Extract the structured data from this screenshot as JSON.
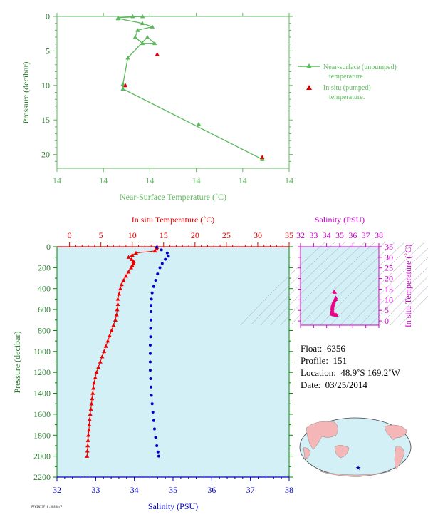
{
  "chart_data": [
    {
      "id": "near-surface",
      "type": "line",
      "xlabel": "Near-Surface Temperature (˚C)",
      "ylabel": "Pressure (decibar)",
      "x_tick_labels": [
        "14",
        "14",
        "14",
        "14",
        "14",
        "14"
      ],
      "y_ticks": [
        0,
        5,
        10,
        15,
        20
      ],
      "xlim": [
        13.35,
        14.3
      ],
      "ylim": [
        0,
        22
      ],
      "y_inverted": true,
      "series": [
        {
          "name": "Near-surface (unpumped) temperature.",
          "color": "#5cb85c",
          "marker": "triangle",
          "x": [
            13.6,
            13.66,
            13.7,
            13.6,
            13.7,
            13.74,
            13.68,
            13.67,
            13.7,
            13.75,
            13.72,
            13.64,
            13.62,
            13.62,
            14.19,
            14.19,
            13.93
          ],
          "y": [
            0.2,
            0.0,
            0.0,
            0.3,
            1.0,
            1.5,
            2.0,
            3.0,
            3.9,
            3.9,
            3.0,
            6.0,
            9.8,
            10.5,
            20.7,
            20.5,
            15.6
          ]
        },
        {
          "name": "In situ (pumped) temperature.",
          "color": "#dd0000",
          "marker": "triangle",
          "x": [
            13.76,
            13.63,
            14.19
          ],
          "y": [
            5.5,
            10.0,
            20.4
          ]
        }
      ]
    },
    {
      "id": "profile",
      "type": "scatter",
      "top_axis_label": "In situ Temperature (˚C)",
      "bottom_axis_label": "Salinity (PSU)",
      "ylabel": "Pressure (decibar)",
      "temp_ticks": [
        0,
        5,
        10,
        15,
        20,
        25,
        30,
        35
      ],
      "sal_ticks": [
        32,
        33,
        34,
        35,
        36,
        37,
        38
      ],
      "y_ticks": [
        0,
        200,
        400,
        600,
        800,
        1000,
        1200,
        1400,
        1600,
        1800,
        2000,
        2200
      ],
      "temp_lim": [
        -2,
        35
      ],
      "sal_lim": [
        32,
        38
      ],
      "ylim": [
        0,
        2200
      ],
      "background": "#d4f0f7",
      "temperature_color": "#ee0000",
      "salinity_color": "#0000cc",
      "temperature": {
        "p": [
          5,
          20,
          40,
          60,
          80,
          100,
          120,
          140,
          160,
          180,
          200,
          240,
          280,
          320,
          360,
          400,
          450,
          500,
          550,
          600,
          650,
          700,
          750,
          800,
          850,
          900,
          950,
          1000,
          1050,
          1100,
          1150,
          1200,
          1250,
          1300,
          1350,
          1400,
          1450,
          1500,
          1550,
          1600,
          1650,
          1700,
          1750,
          1800,
          1850,
          1900,
          1950,
          2000
        ],
        "t": [
          13.9,
          13.9,
          13.6,
          10.6,
          10.0,
          9.4,
          9.9,
          10.2,
          10.2,
          10.0,
          9.8,
          9.4,
          9.0,
          8.6,
          8.3,
          8.1,
          7.9,
          7.7,
          7.7,
          7.6,
          7.5,
          7.3,
          7.0,
          6.7,
          6.4,
          6.1,
          5.8,
          5.5,
          5.2,
          4.9,
          4.6,
          4.3,
          4.1,
          3.9,
          3.8,
          3.7,
          3.6,
          3.5,
          3.4,
          3.3,
          3.2,
          3.15,
          3.1,
          3.0,
          2.95,
          2.9,
          2.85,
          2.8
        ]
      },
      "salinity": {
        "p": [
          5,
          30,
          60,
          90,
          120,
          160,
          200,
          260,
          320,
          380,
          440,
          500,
          560,
          620,
          700,
          780,
          860,
          940,
          1020,
          1100,
          1180,
          1260,
          1340,
          1420,
          1500,
          1580,
          1660,
          1740,
          1820,
          1900,
          1960,
          2000
        ],
        "s": [
          34.58,
          34.7,
          34.85,
          34.88,
          34.8,
          34.72,
          34.66,
          34.6,
          34.55,
          34.5,
          34.46,
          34.44,
          34.43,
          34.43,
          34.43,
          34.42,
          34.42,
          34.41,
          34.41,
          34.41,
          34.41,
          34.42,
          34.43,
          34.44,
          34.46,
          34.48,
          34.5,
          34.52,
          34.55,
          34.58,
          34.61,
          34.63
        ]
      }
    },
    {
      "id": "ts-diagram",
      "type": "scatter",
      "xlabel": "Salinity (PSU)",
      "ylabel": "In situ Temperature (˚C)",
      "x_ticks": [
        32,
        33,
        34,
        35,
        36,
        37,
        38
      ],
      "y_ticks": [
        0,
        5,
        10,
        15,
        20,
        25,
        30,
        35
      ],
      "xlim": [
        32,
        38
      ],
      "ylim": [
        -2,
        35
      ],
      "background": "#d4f0f7",
      "color": "#ee0088",
      "s": [
        34.58,
        34.62,
        34.7,
        34.68,
        34.6,
        34.55,
        34.5,
        34.48,
        34.46,
        34.45,
        34.44,
        34.43,
        34.43,
        34.42,
        34.42,
        34.41,
        34.42,
        34.44,
        34.47,
        34.5,
        34.56,
        34.62,
        34.7,
        34.75
      ],
      "t": [
        13.9,
        13.6,
        11.0,
        10.2,
        9.8,
        9.0,
        8.3,
        7.8,
        7.4,
        7.0,
        6.4,
        5.8,
        5.2,
        4.6,
        4.1,
        3.8,
        3.6,
        3.4,
        3.2,
        3.1,
        3.0,
        2.9,
        2.85,
        2.8
      ]
    }
  ],
  "float_info": {
    "float_label": "Float:",
    "float_value": "6356",
    "profile_label": "Profile:",
    "profile_value": "151",
    "location_label": "Location:",
    "location_value": "48.9˚S  169.2˚W",
    "date_label": "Date:",
    "date_value": "03/25/2014"
  },
  "legend": {
    "near_surface_line1": "Near-surface (unpumped)",
    "near_surface_line2": "temperature.",
    "in_situ_line1": "In situ (pumped)",
    "in_situ_line2": "temperature."
  },
  "map": {
    "marker_color": "#0000cc",
    "land_color": "#f4b6b6",
    "ocean_color": "#d4f0f7"
  },
  "footer_code": "PFWIN17F_8.88888/P"
}
